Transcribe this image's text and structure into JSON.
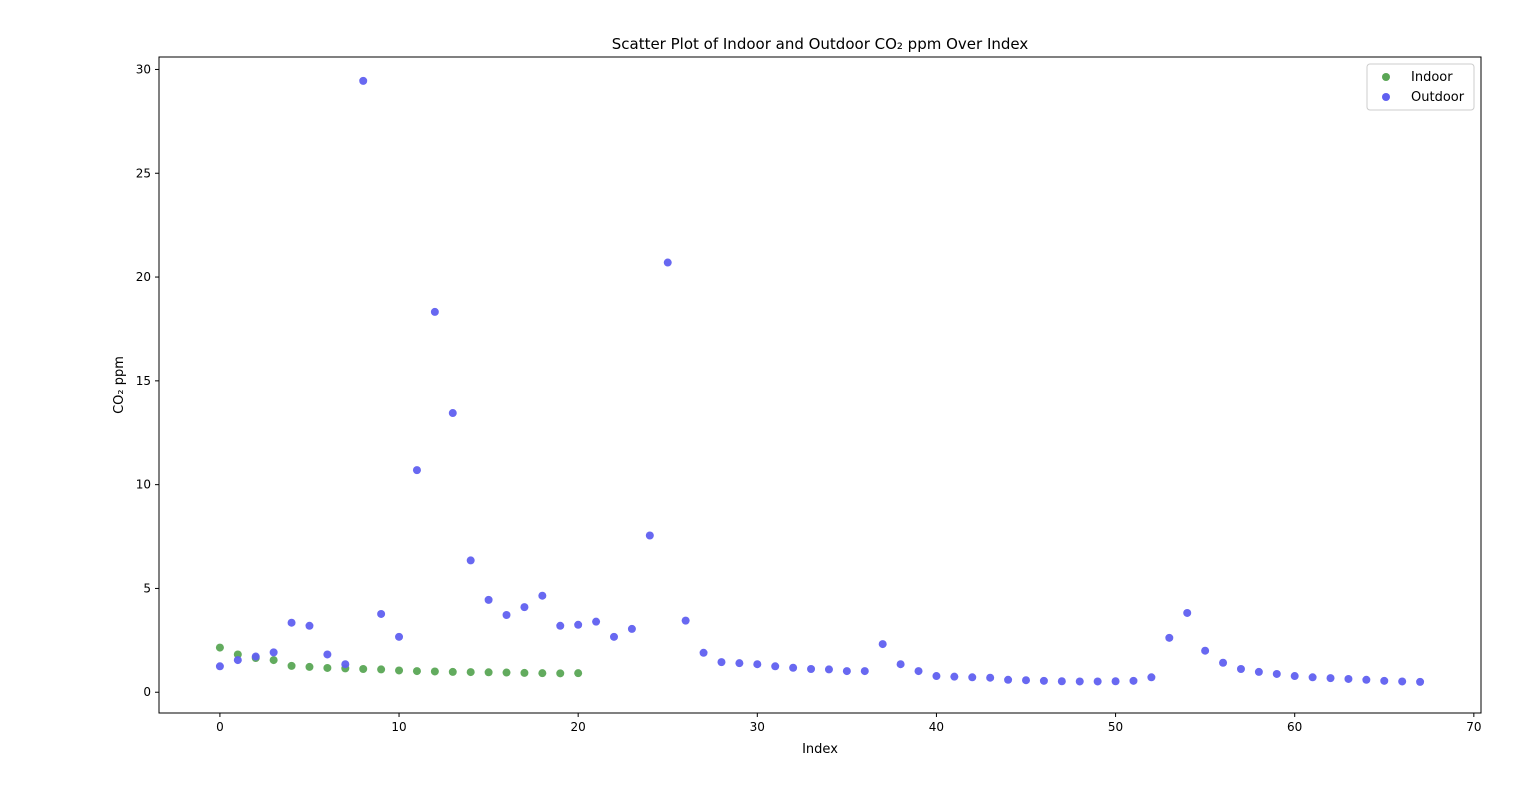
{
  "chart_data": {
    "type": "scatter",
    "title": "Scatter Plot of Indoor and Outdoor CO₂ ppm Over Index",
    "xlabel": "Index",
    "ylabel": "CO₂ ppm",
    "xlim": [
      -3.4,
      70.4
    ],
    "ylim": [
      -1.0,
      30.6
    ],
    "xticks": [
      0,
      10,
      20,
      30,
      40,
      50,
      60,
      70
    ],
    "yticks": [
      0,
      5,
      10,
      15,
      20,
      25,
      30
    ],
    "grid": false,
    "legend_position": "top-right",
    "series": [
      {
        "name": "Indoor",
        "color": "#5aa655",
        "x": [
          0,
          1,
          2,
          3,
          4,
          5,
          6,
          7,
          8,
          9,
          10,
          11,
          12,
          13,
          14,
          15,
          16,
          17,
          18,
          19,
          20
        ],
        "y": [
          2.15,
          1.82,
          1.65,
          1.55,
          1.27,
          1.22,
          1.17,
          1.15,
          1.12,
          1.1,
          1.05,
          1.02,
          1.0,
          0.98,
          0.97,
          0.96,
          0.95,
          0.93,
          0.92,
          0.91,
          0.92
        ]
      },
      {
        "name": "Outdoor",
        "color": "#6060f0",
        "x": [
          0,
          1,
          2,
          3,
          4,
          5,
          6,
          7,
          8,
          9,
          10,
          11,
          12,
          13,
          14,
          15,
          16,
          17,
          18,
          19,
          20,
          21,
          22,
          23,
          24,
          25,
          26,
          27,
          28,
          29,
          30,
          31,
          32,
          33,
          34,
          35,
          36,
          37,
          38,
          39,
          40,
          41,
          42,
          43,
          44,
          45,
          46,
          47,
          48,
          49,
          50,
          51,
          52,
          53,
          54,
          55,
          56,
          57,
          58,
          59,
          60,
          61,
          62,
          63,
          64,
          65,
          66,
          67
        ],
        "y": [
          1.25,
          1.55,
          1.72,
          1.92,
          3.35,
          3.2,
          1.82,
          1.35,
          29.45,
          3.77,
          2.67,
          10.7,
          18.32,
          13.45,
          6.35,
          4.45,
          3.72,
          4.1,
          4.65,
          3.2,
          3.25,
          3.4,
          2.67,
          3.05,
          7.55,
          20.7,
          3.45,
          1.9,
          1.45,
          1.4,
          1.35,
          1.25,
          1.18,
          1.12,
          1.1,
          1.02,
          1.02,
          2.32,
          1.35,
          1.02,
          0.78,
          0.75,
          0.72,
          0.7,
          0.6,
          0.58,
          0.55,
          0.53,
          0.52,
          0.52,
          0.53,
          0.55,
          0.72,
          2.62,
          3.82,
          2.0,
          1.42,
          1.12,
          0.98,
          0.88,
          0.78,
          0.72,
          0.68,
          0.64,
          0.6,
          0.55,
          0.52,
          0.5
        ]
      }
    ]
  }
}
